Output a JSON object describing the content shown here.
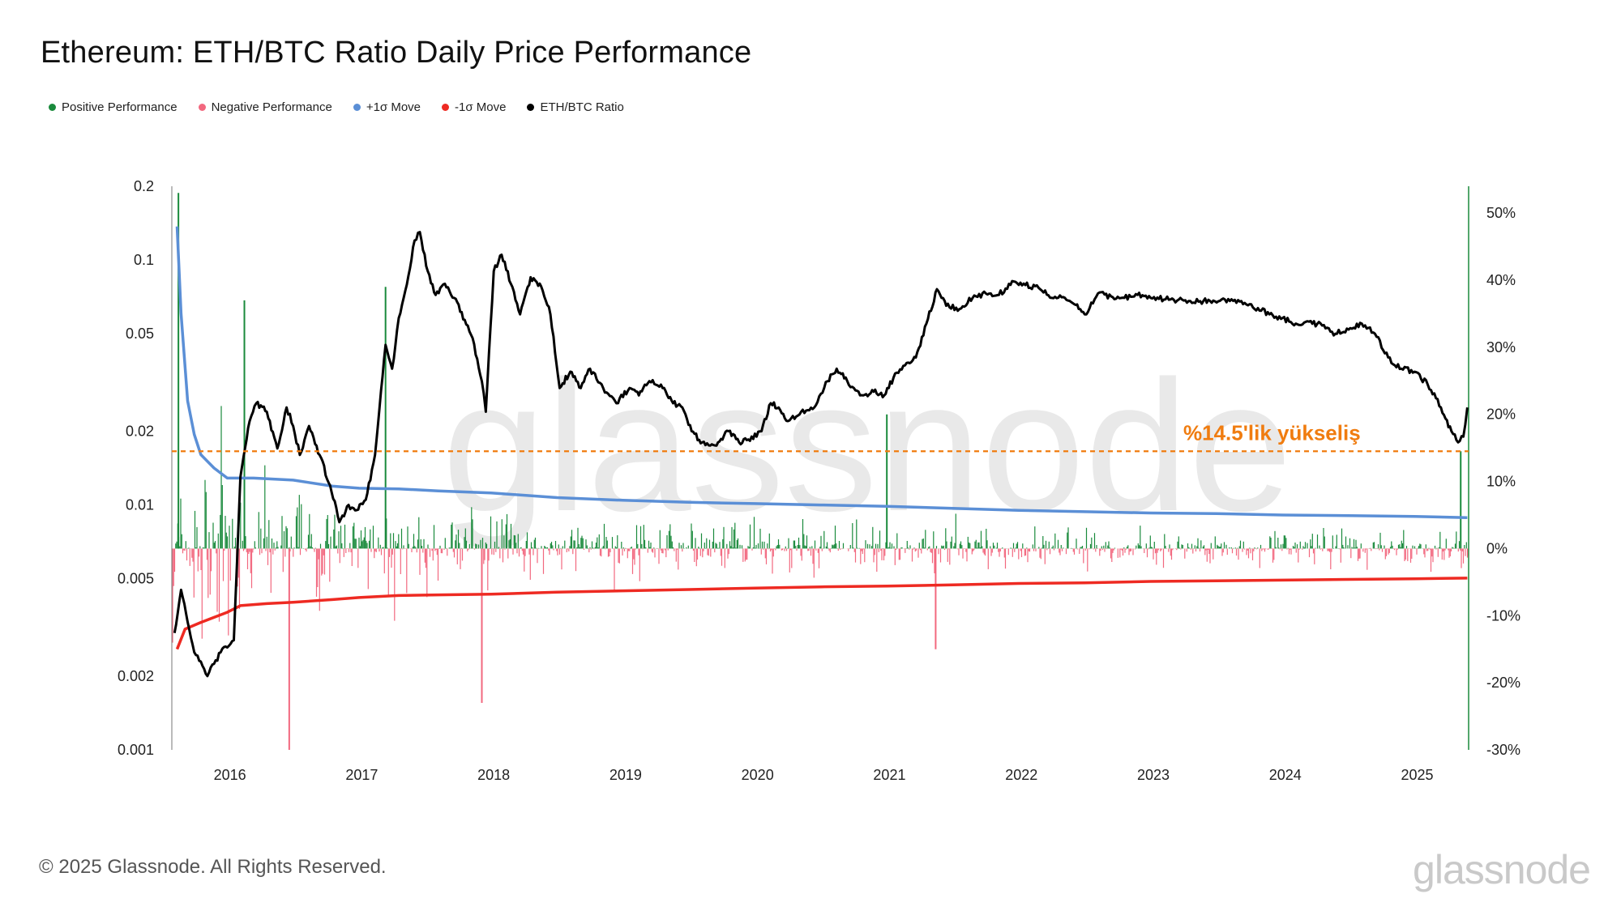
{
  "title": "Ethereum: ETH/BTC Ratio Daily Price Performance",
  "legend": [
    {
      "label": "Positive Performance",
      "color": "#1a8a3c"
    },
    {
      "label": "Negative Performance",
      "color": "#f2687f"
    },
    {
      "label": "+1σ Move",
      "color": "#5b8fd6"
    },
    {
      "label": "-1σ Move",
      "color": "#ee2a22"
    },
    {
      "label": "ETH/BTC Ratio",
      "color": "#000000"
    }
  ],
  "footer": "© 2025 Glassnode. All Rights Reserved.",
  "brand": "glassnode",
  "watermark": "glassnode",
  "chart_data": {
    "type": "line",
    "title": "Ethereum: ETH/BTC Ratio Daily Price Performance",
    "x_range": [
      2015.58,
      2025.41
    ],
    "x_ticks": [
      "2016",
      "2017",
      "2018",
      "2019",
      "2020",
      "2021",
      "2022",
      "2023",
      "2024",
      "2025"
    ],
    "y_left": {
      "scale": "log",
      "range": [
        0.001,
        0.2
      ],
      "ticks": [
        "0.2",
        "0.1",
        "0.05",
        "0.02",
        "0.01",
        "0.005",
        "0.002",
        "0.001"
      ]
    },
    "y_right": {
      "scale": "linear",
      "range": [
        -30,
        54
      ],
      "unit": "%",
      "ticks": [
        "50%",
        "40%",
        "30%",
        "20%",
        "10%",
        "0%",
        "-10%",
        "-20%",
        "-30%"
      ]
    },
    "annotation": {
      "label": "%14.5'lik yükseliş",
      "value": 14.5,
      "color": "#f07c0f"
    },
    "series": [
      {
        "name": "ETH/BTC Ratio",
        "axis": "left",
        "x": [
          2015.6,
          2015.65,
          2015.75,
          2015.85,
          2015.95,
          2016.05,
          2016.1,
          2016.17,
          2016.22,
          2016.3,
          2016.38,
          2016.45,
          2016.5,
          2016.55,
          2016.62,
          2016.7,
          2016.78,
          2016.85,
          2016.92,
          2016.97,
          2017.05,
          2017.12,
          2017.2,
          2017.25,
          2017.3,
          2017.35,
          2017.42,
          2017.46,
          2017.52,
          2017.58,
          2017.65,
          2017.72,
          2017.8,
          2017.86,
          2017.93,
          2017.96,
          2018.02,
          2018.08,
          2018.15,
          2018.22,
          2018.3,
          2018.38,
          2018.45,
          2018.52,
          2018.6,
          2018.68,
          2018.75,
          2018.85,
          2018.95,
          2019.05,
          2019.12,
          2019.2,
          2019.3,
          2019.38,
          2019.45,
          2019.52,
          2019.6,
          2019.65,
          2019.72,
          2019.8,
          2019.88,
          2019.95,
          2020.05,
          2020.12,
          2020.18,
          2020.25,
          2020.35,
          2020.45,
          2020.55,
          2020.62,
          2020.7,
          2020.75,
          2020.82,
          2020.9,
          2020.98,
          2021.05,
          2021.15,
          2021.22,
          2021.3,
          2021.38,
          2021.45,
          2021.55,
          2021.65,
          2021.75,
          2021.85,
          2021.95,
          2022.05,
          2022.15,
          2022.25,
          2022.35,
          2022.42,
          2022.5,
          2022.6,
          2022.7,
          2022.8,
          2022.9,
          2023.0,
          2023.15,
          2023.3,
          2023.45,
          2023.6,
          2023.75,
          2023.9,
          2024.0,
          2024.1,
          2024.2,
          2024.3,
          2024.4,
          2024.5,
          2024.6,
          2024.7,
          2024.8,
          2024.9,
          2025.0,
          2025.1,
          2025.2,
          2025.28,
          2025.33,
          2025.37,
          2025.4
        ],
        "values": [
          0.003,
          0.0045,
          0.0025,
          0.002,
          0.0025,
          0.0028,
          0.013,
          0.022,
          0.026,
          0.024,
          0.017,
          0.025,
          0.021,
          0.016,
          0.021,
          0.016,
          0.012,
          0.0085,
          0.01,
          0.0095,
          0.0105,
          0.016,
          0.045,
          0.036,
          0.058,
          0.075,
          0.12,
          0.13,
          0.09,
          0.072,
          0.08,
          0.07,
          0.057,
          0.048,
          0.032,
          0.024,
          0.09,
          0.105,
          0.08,
          0.06,
          0.085,
          0.078,
          0.06,
          0.03,
          0.035,
          0.03,
          0.036,
          0.03,
          0.026,
          0.03,
          0.028,
          0.032,
          0.03,
          0.026,
          0.025,
          0.02,
          0.018,
          0.0175,
          0.018,
          0.02,
          0.018,
          0.0185,
          0.02,
          0.026,
          0.025,
          0.022,
          0.024,
          0.025,
          0.032,
          0.036,
          0.032,
          0.03,
          0.028,
          0.029,
          0.028,
          0.033,
          0.038,
          0.04,
          0.055,
          0.076,
          0.065,
          0.063,
          0.07,
          0.073,
          0.072,
          0.082,
          0.079,
          0.077,
          0.07,
          0.07,
          0.066,
          0.06,
          0.073,
          0.071,
          0.07,
          0.072,
          0.07,
          0.069,
          0.068,
          0.068,
          0.068,
          0.066,
          0.06,
          0.058,
          0.055,
          0.056,
          0.054,
          0.05,
          0.052,
          0.055,
          0.05,
          0.04,
          0.036,
          0.035,
          0.031,
          0.025,
          0.02,
          0.018,
          0.019,
          0.025
        ]
      },
      {
        "name": "+1σ Move",
        "axis": "right",
        "x": [
          2015.62,
          2015.65,
          2015.7,
          2015.75,
          2015.8,
          2015.9,
          2016.0,
          2016.2,
          2016.5,
          2016.8,
          2017.0,
          2017.3,
          2017.6,
          2018.0,
          2018.5,
          2019.0,
          2019.5,
          2020.0,
          2020.5,
          2021.0,
          2021.5,
          2022.0,
          2022.5,
          2023.0,
          2023.5,
          2024.0,
          2024.5,
          2025.0,
          2025.4
        ],
        "values": [
          48,
          35,
          22,
          17,
          14,
          12,
          10.5,
          10.5,
          10.2,
          9.3,
          9,
          8.9,
          8.6,
          8.3,
          7.6,
          7.2,
          6.9,
          6.7,
          6.5,
          6.3,
          6.0,
          5.7,
          5.5,
          5.3,
          5.2,
          5.0,
          4.9,
          4.8,
          4.6
        ]
      },
      {
        "name": "-1σ Move",
        "axis": "right",
        "x": [
          2015.62,
          2015.68,
          2015.8,
          2016.0,
          2016.1,
          2016.3,
          2016.5,
          2016.8,
          2017.0,
          2017.3,
          2017.6,
          2018.0,
          2018.5,
          2019.0,
          2019.5,
          2020.0,
          2020.5,
          2021.0,
          2021.5,
          2022.0,
          2022.5,
          2023.0,
          2023.5,
          2024.0,
          2024.5,
          2025.0,
          2025.4
        ],
        "values": [
          -15,
          -12,
          -11,
          -9.5,
          -8.5,
          -8.2,
          -8.0,
          -7.6,
          -7.3,
          -7.0,
          -6.9,
          -6.8,
          -6.5,
          -6.3,
          -6.1,
          -5.9,
          -5.7,
          -5.6,
          -5.4,
          -5.2,
          -5.1,
          -4.9,
          -4.8,
          -4.7,
          -4.6,
          -4.5,
          -4.4
        ]
      }
    ],
    "performance_bars": {
      "positive_color": "#1a8a3c",
      "negative_color": "#f2687f",
      "notable_spikes": [
        {
          "x": 2015.63,
          "value": 53
        },
        {
          "x": 2016.13,
          "value": 37
        },
        {
          "x": 2017.2,
          "value": 39
        },
        {
          "x": 2021.0,
          "value": 20
        },
        {
          "x": 2025.35,
          "value": 14.5
        },
        {
          "x": 2016.47,
          "value": -30
        },
        {
          "x": 2017.93,
          "value": -23
        },
        {
          "x": 2021.37,
          "value": -15
        }
      ]
    }
  }
}
